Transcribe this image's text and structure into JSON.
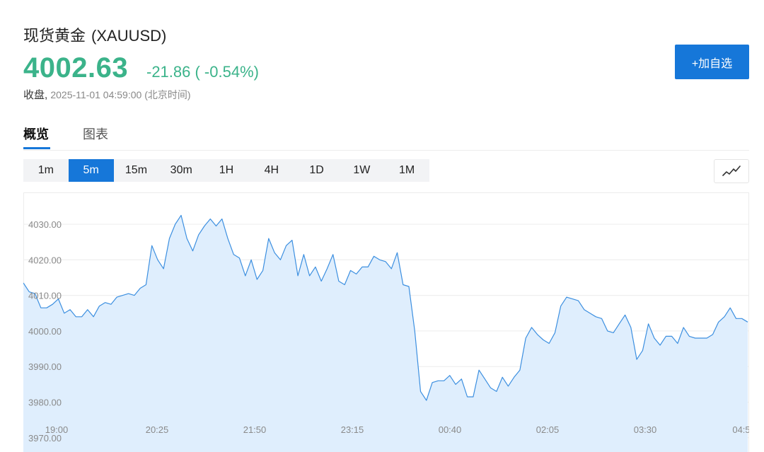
{
  "header": {
    "name": "现货黄金",
    "symbol": "(XAUUSD)",
    "price": "4002.63",
    "change": "-21.86 ( -0.54%)",
    "status_label": "收盘,",
    "timestamp": "2025-11-01 04:59:00 (北京时间)",
    "add_watchlist_label": "+加自选"
  },
  "tabs": [
    {
      "label": "概览",
      "active": true
    },
    {
      "label": "图表",
      "active": false
    }
  ],
  "periods": [
    {
      "label": "1m",
      "active": false
    },
    {
      "label": "5m",
      "active": true
    },
    {
      "label": "15m",
      "active": false
    },
    {
      "label": "30m",
      "active": false
    },
    {
      "label": "1H",
      "active": false
    },
    {
      "label": "4H",
      "active": false
    },
    {
      "label": "1D",
      "active": false
    },
    {
      "label": "1W",
      "active": false
    },
    {
      "label": "1M",
      "active": false
    }
  ],
  "chart_type_icon": "line-chart-icon",
  "colors": {
    "accent": "#1677d9",
    "price_change": "#3bb38a",
    "line": "#3c8fe0",
    "area": "#dfeefd"
  },
  "chart_data": {
    "type": "area",
    "y_ticks": [
      "4030.00",
      "4020.00",
      "4010.00",
      "4000.00",
      "3990.00",
      "3980.00",
      "3970.00"
    ],
    "x_ticks": [
      "19:00",
      "20:25",
      "21:50",
      "23:15",
      "00:40",
      "02:05",
      "03:30",
      "04:5"
    ],
    "ylim": [
      3970,
      4039
    ],
    "grid": true,
    "values": [
      4013.5,
      4011,
      4010.5,
      4006.5,
      4006.5,
      4007.5,
      4009,
      4005,
      4006,
      4004,
      4004,
      4006,
      4004,
      4007,
      4008,
      4007.5,
      4009.5,
      4010,
      4010.5,
      4010,
      4012,
      4013,
      4024,
      4020,
      4017.5,
      4026,
      4030,
      4032.5,
      4026,
      4022.5,
      4027,
      4029.5,
      4031.5,
      4029.5,
      4031.5,
      4026,
      4021.5,
      4020.5,
      4015.5,
      4020,
      4014.5,
      4017,
      4026,
      4022,
      4020,
      4024,
      4025.5,
      4015.5,
      4021.5,
      4015.5,
      4018,
      4014,
      4017.5,
      4021.5,
      4014,
      4013,
      4017,
      4016,
      4018,
      4018,
      4021,
      4020,
      4019.5,
      4017.5,
      4022,
      4013,
      4012.5,
      4000,
      3983,
      3980.5,
      3985.5,
      3986,
      3986,
      3987.5,
      3985,
      3986.5,
      3981.5,
      3981.5,
      3989,
      3986.5,
      3984,
      3983,
      3987,
      3984.5,
      3987,
      3989,
      3998,
      4001,
      3999,
      3997.5,
      3996.5,
      3999.5,
      4007,
      4009.5,
      4009,
      4008.5,
      4006,
      4005,
      4004,
      4003.5,
      4000,
      3999.5,
      4002,
      4004.5,
      4001,
      3992,
      3994.5,
      4002,
      3998,
      3996,
      3998.5,
      3998.5,
      3996.5,
      4001,
      3998.5,
      3998,
      3998,
      3998,
      3999,
      4002.5,
      4004,
      4006.5,
      4003.5,
      4003.5,
      4002.5
    ]
  }
}
